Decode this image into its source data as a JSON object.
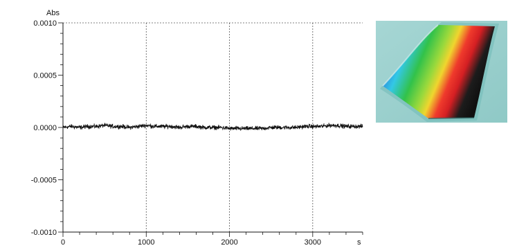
{
  "chart_data": {
    "type": "line",
    "title": "",
    "xlabel": "",
    "ylabel": "",
    "x_unit": "s",
    "y_unit": "Abs",
    "xlim": [
      0,
      3600
    ],
    "ylim": [
      -0.001,
      0.001
    ],
    "x_ticks": [
      0,
      1000,
      2000,
      3000
    ],
    "x_tick_labels": [
      "0",
      "1000",
      "2000",
      "3000"
    ],
    "y_ticks": [
      0.001,
      0.0005,
      0.0,
      -0.0005,
      -0.001
    ],
    "y_tick_labels": [
      "0.0010",
      "0.0005",
      "0.0000",
      "-0.0005",
      "-0.0010"
    ],
    "grid": true,
    "series": [
      {
        "color": "#111111",
        "x": [
          0,
          100,
          200,
          300,
          400,
          500,
          600,
          700,
          800,
          900,
          1000,
          1100,
          1200,
          1300,
          1400,
          1500,
          1600,
          1700,
          1800,
          1900,
          2000,
          2100,
          2200,
          2300,
          2400,
          2500,
          2600,
          2700,
          2800,
          2900,
          3000,
          3100,
          3200,
          3300,
          3400,
          3500,
          3600
        ],
        "y": [
          0.0,
          1e-05,
          0.0,
          1e-05,
          1e-05,
          2e-05,
          1e-05,
          1e-05,
          0.0,
          1e-05,
          2e-05,
          1e-05,
          1e-05,
          1e-05,
          0.0,
          1e-05,
          1e-05,
          0.0,
          0.0,
          0.0,
          -1e-05,
          -1e-05,
          -1e-05,
          -1e-05,
          -1e-05,
          0.0,
          0.0,
          0.0,
          0.0,
          1e-05,
          1e-05,
          1e-05,
          2e-05,
          2e-05,
          1e-05,
          1e-05,
          1e-05
        ],
        "noise_amplitude": 3e-05
      }
    ]
  },
  "photo": {
    "description": "tilted glass plate showing rainbow gradient blue-cyan-green-yellow-red-black",
    "background_color": "#9ed1cf",
    "gradient_colors": [
      "#2f4fb8",
      "#2a9fe0",
      "#33c8e6",
      "#32c24a",
      "#9ad93c",
      "#f0d52e",
      "#ef3a2c",
      "#d41f23",
      "#1c1c1c"
    ]
  }
}
